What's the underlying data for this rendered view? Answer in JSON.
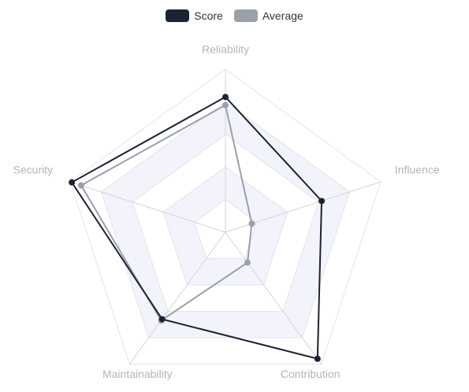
{
  "chart_data": {
    "type": "radar",
    "axes": [
      "Reliability",
      "Influence",
      "Contribution",
      "Maintainability",
      "Security"
    ],
    "max": 100,
    "levels": 5,
    "series": [
      {
        "name": "Score",
        "values": [
          83,
          62,
          96,
          66,
          99
        ],
        "color": "#1c2333"
      },
      {
        "name": "Average",
        "values": [
          78,
          17,
          23,
          67,
          93
        ],
        "color": "#9a9fa8"
      }
    ],
    "legend_position": "top-center"
  },
  "legend": {
    "items": [
      {
        "label": "Score",
        "color": "#1c2333"
      },
      {
        "label": "Average",
        "color": "#9a9fa8"
      }
    ]
  }
}
